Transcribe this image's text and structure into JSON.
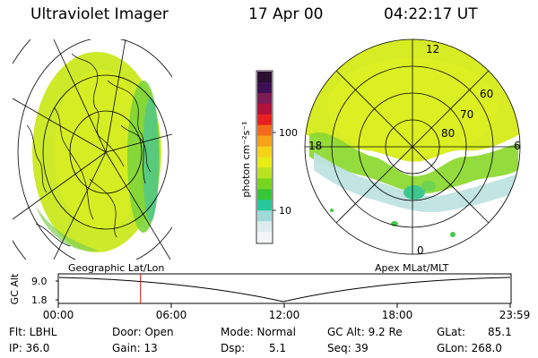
{
  "header": {
    "instrument": "Ultraviolet Imager",
    "date": "17 Apr 00",
    "time": "04:22:17 UT"
  },
  "colorbar": {
    "unit_label": "photon cm⁻²s⁻¹",
    "ticks": [
      "100",
      "10"
    ],
    "colors": [
      "#2b0f2f",
      "#3c0f52",
      "#7a1c55",
      "#b3123a",
      "#e6201e",
      "#f26b1b",
      "#f7a21a",
      "#f6d31a",
      "#e8ec17",
      "#b9e321",
      "#78d51f",
      "#37c637",
      "#27c79b",
      "#9fdad8",
      "#dcecef",
      "#f3f6f7"
    ]
  },
  "left_panel": {
    "caption": "Geographic Lat/Lon"
  },
  "right_panel": {
    "caption": "Apex MLat/MLT",
    "mlt_labels": {
      "top": "12",
      "left": "18",
      "right": "6",
      "bottom": "0"
    },
    "lat_labels": [
      "60",
      "70",
      "80"
    ]
  },
  "timeline": {
    "ylabel": "GC Alt",
    "y_ticks": [
      "9.0",
      "1.8"
    ],
    "x_ticks": [
      "00:00",
      "06:00",
      "12:00",
      "18:00",
      "23:59"
    ],
    "marker_time": "04:22",
    "marker_color": "#d01010"
  },
  "status": {
    "flt": "Flt: LBHL",
    "ip": "IP: 36.0",
    "door": "Door: Open",
    "gain": "Gain: 13",
    "mode": "Mode: Normal",
    "dsp_label": "Dsp:",
    "dsp_value": "5.1",
    "gcalt": "GC Alt: 9.2 Re",
    "seq": "Seq: 39",
    "glat_label": "GLat:",
    "glat_value": "85.1",
    "glon": "GLon: 268.0"
  }
}
